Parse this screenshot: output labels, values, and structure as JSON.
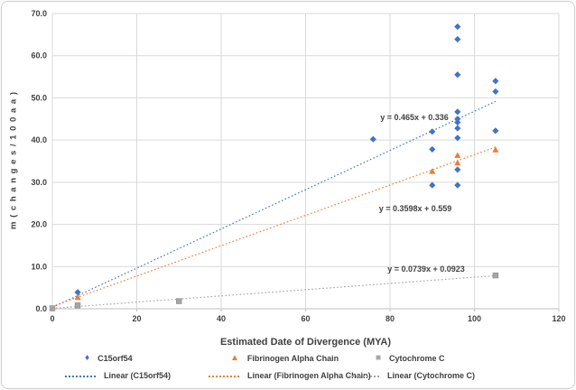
{
  "colors": {
    "c15orf54": "#4472C4",
    "fibrinogen": "#ED7D31",
    "cytochrome": "#A5A5A5",
    "gridline": "#D9D9D9",
    "axis_line": "#BFBFBF",
    "text": "#404040"
  },
  "chart_data": {
    "type": "scatter",
    "title": "",
    "xlabel": "Estimated Date of Divergence (MYA)",
    "ylabel": "m ( c h a n g e s / 1 0 0 a a )",
    "xlim": [
      0,
      120
    ],
    "ylim": [
      0,
      70
    ],
    "x_ticks": [
      0,
      20,
      40,
      60,
      80,
      100,
      120
    ],
    "y_tick_labels": [
      "0.0",
      "10.0",
      "20.0",
      "30.0",
      "40.0",
      "50.0",
      "60.0",
      "70.0"
    ],
    "y_tick_values": [
      0,
      10,
      20,
      30,
      40,
      50,
      60,
      70
    ],
    "grid": true,
    "legend_position": "bottom",
    "series": [
      {
        "name": "C15orf54",
        "marker": "diamond",
        "color": "#4472C4",
        "points": [
          [
            6,
            3.9
          ],
          [
            76,
            40.2
          ],
          [
            90,
            42.0
          ],
          [
            90,
            37.8
          ],
          [
            90,
            29.3
          ],
          [
            96,
            66.9
          ],
          [
            96,
            63.9
          ],
          [
            96,
            55.5
          ],
          [
            96,
            46.7
          ],
          [
            96,
            45.0
          ],
          [
            96,
            44.2
          ],
          [
            96,
            42.8
          ],
          [
            96,
            40.5
          ],
          [
            96,
            33.0
          ],
          [
            96,
            29.3
          ],
          [
            105,
            54.0
          ],
          [
            105,
            51.5
          ],
          [
            105,
            42.2
          ]
        ],
        "trendline": {
          "legend_label": "Linear (C15orf54)",
          "slope": 0.465,
          "intercept": 0.336,
          "equation": "y = 0.465x + 0.336",
          "x_range": [
            0,
            105
          ],
          "eq_pos": [
            457,
            131
          ]
        }
      },
      {
        "name": "Fibrinogen Alpha Chain",
        "marker": "triangle",
        "color": "#ED7D31",
        "points": [
          [
            6,
            2.7
          ],
          [
            90,
            32.6
          ],
          [
            96,
            36.4
          ],
          [
            96,
            34.6
          ],
          [
            105,
            37.7
          ]
        ],
        "trendline": {
          "legend_label": "Linear (Fibrinogen Alpha Chain)",
          "slope": 0.3598,
          "intercept": 0.559,
          "equation": "y = 0.3598x + 0.559",
          "x_range": [
            0,
            105
          ],
          "eq_pos": [
            458,
            232
          ]
        }
      },
      {
        "name": "Cytochrome C",
        "marker": "square",
        "color": "#A5A5A5",
        "points": [
          [
            0,
            0.1
          ],
          [
            6,
            0.8
          ],
          [
            30,
            1.8
          ],
          [
            105,
            7.9
          ]
        ],
        "trendline": {
          "legend_label": "Linear (Cytochrome C)",
          "slope": 0.0739,
          "intercept": 0.0923,
          "equation": "y = 0.0739x + 0.0923",
          "x_range": [
            0,
            105
          ],
          "eq_pos": [
            470,
            299
          ]
        }
      }
    ]
  }
}
